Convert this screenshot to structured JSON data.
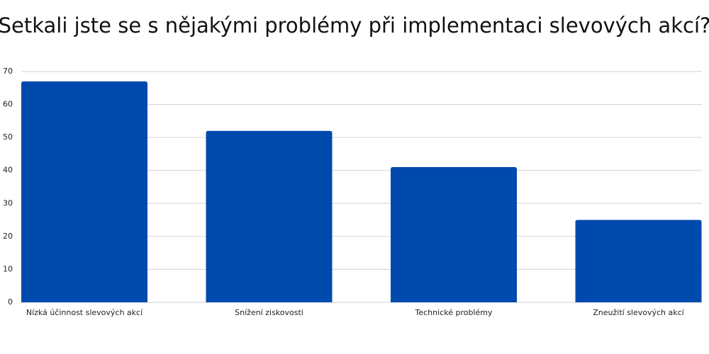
{
  "chart_data": {
    "type": "bar",
    "title": "Setkali jste se s nějakými problémy při implementaci slevových akcí?",
    "categories": [
      "Nízká účinnost slevových akcí",
      "Snížení ziskovosti",
      "Technické problémy",
      "Zneužití slevových akcí"
    ],
    "values": [
      67,
      52,
      41,
      25
    ],
    "color": "#004aad",
    "ylim": [
      0,
      70
    ],
    "yticks": [
      0,
      10,
      20,
      30,
      40,
      50,
      60,
      70
    ],
    "grid": true
  }
}
